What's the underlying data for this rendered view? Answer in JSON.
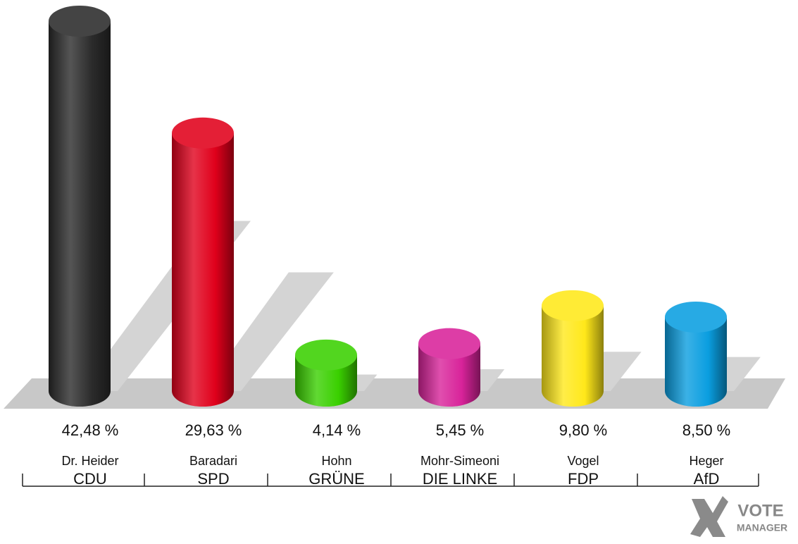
{
  "chart_data": {
    "type": "bar",
    "categories": [
      "Dr. Heider",
      "Baradari",
      "Hohn",
      "Mohr-Simeoni",
      "Vogel",
      "Heger"
    ],
    "parties": [
      "CDU",
      "SPD",
      "GRÜNE",
      "DIE LINKE",
      "FDP",
      "AfD"
    ],
    "values": [
      42.48,
      29.63,
      4.14,
      5.45,
      9.8,
      8.5
    ],
    "value_labels": [
      "42,48 %",
      "29,63 %",
      "4,14 %",
      "5,45 %",
      "9,80 %",
      "8,50 %"
    ],
    "colors": [
      "#2b2b2b",
      "#e0001b",
      "#3ad000",
      "#d8239a",
      "#ffe81a",
      "#0a9ee0"
    ],
    "logo_text": "VOTE",
    "logo_subtext": "MANAGER"
  }
}
